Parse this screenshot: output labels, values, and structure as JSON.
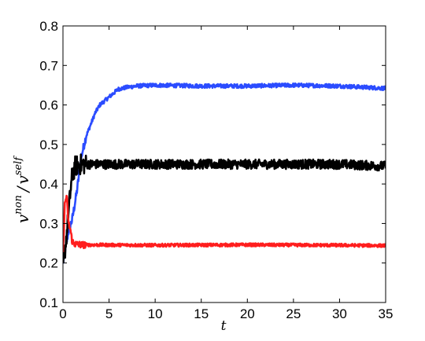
{
  "chart_data": {
    "type": "line",
    "title": "",
    "xlabel": "t",
    "ylabel": {
      "v1": "v",
      "sup1": "non",
      "slash": "/",
      "v2": "v",
      "sup2": "self"
    },
    "xlim": [
      0,
      35
    ],
    "ylim": [
      0.1,
      0.8
    ],
    "xticks": [
      "0",
      "5",
      "10",
      "15",
      "20",
      "25",
      "30",
      "35"
    ],
    "yticks": [
      "0.1",
      "0.2",
      "0.3",
      "0.4",
      "0.5",
      "0.6",
      "0.7",
      "0.8"
    ],
    "grid": false,
    "legend": "none",
    "series": [
      {
        "color": "#2b4cff",
        "noise": 0.005,
        "points": [
          [
            0,
            0.2
          ],
          [
            0.3,
            0.24
          ],
          [
            0.6,
            0.28
          ],
          [
            1,
            0.31
          ],
          [
            1.5,
            0.38
          ],
          [
            2,
            0.47
          ],
          [
            2.5,
            0.52
          ],
          [
            3,
            0.55
          ],
          [
            3.5,
            0.58
          ],
          [
            4,
            0.6
          ],
          [
            5,
            0.62
          ],
          [
            6,
            0.64
          ],
          [
            7,
            0.645
          ],
          [
            8,
            0.648
          ],
          [
            10,
            0.65
          ],
          [
            15,
            0.648
          ],
          [
            20,
            0.648
          ],
          [
            25,
            0.65
          ],
          [
            30,
            0.648
          ],
          [
            35,
            0.642
          ]
        ]
      },
      {
        "color": "#000000",
        "noise": 0.012,
        "points": [
          [
            0,
            0.19
          ],
          [
            0.3,
            0.25
          ],
          [
            0.6,
            0.32
          ],
          [
            0.8,
            0.38
          ],
          [
            1,
            0.42
          ],
          [
            1.3,
            0.445
          ],
          [
            2,
            0.45
          ],
          [
            10,
            0.45
          ],
          [
            20,
            0.45
          ],
          [
            30,
            0.45
          ],
          [
            35,
            0.445
          ]
        ]
      },
      {
        "color": "#ff1e1e",
        "noise": 0.004,
        "points": [
          [
            0,
            0.22
          ],
          [
            0.2,
            0.35
          ],
          [
            0.4,
            0.37
          ],
          [
            0.6,
            0.3
          ],
          [
            0.8,
            0.285
          ],
          [
            1,
            0.255
          ],
          [
            1.3,
            0.248
          ],
          [
            2,
            0.246
          ],
          [
            10,
            0.245
          ],
          [
            20,
            0.246
          ],
          [
            30,
            0.245
          ],
          [
            35,
            0.244
          ]
        ]
      }
    ]
  }
}
